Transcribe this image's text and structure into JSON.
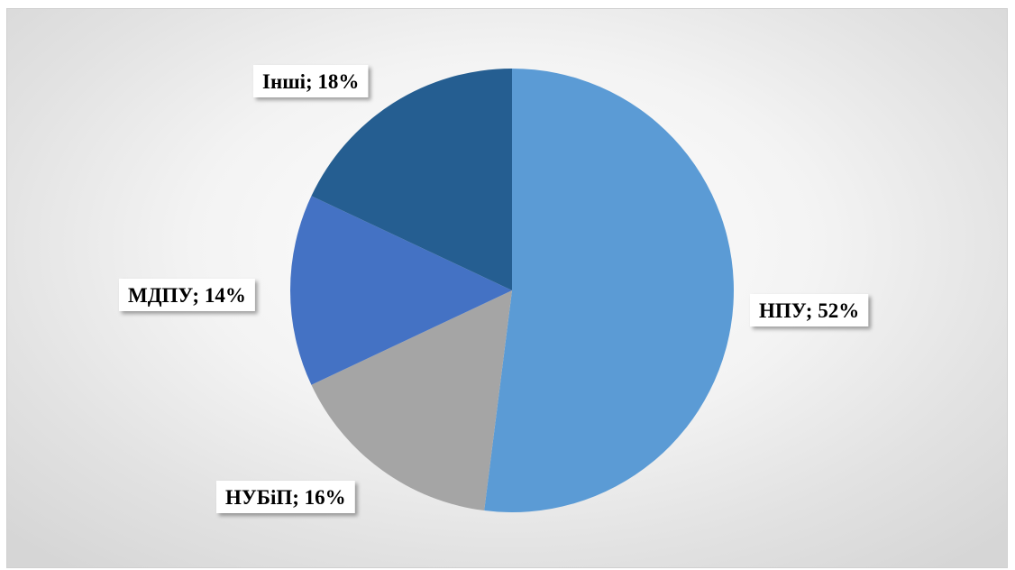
{
  "chart_data": {
    "type": "pie",
    "title": "",
    "slices": [
      {
        "label": "НПУ",
        "value": 52,
        "color": "#5b9bd5",
        "text": "НПУ; 52%"
      },
      {
        "label": "НУБіП",
        "value": 16,
        "color": "#a5a5a5",
        "text": "НУБіП; 16%"
      },
      {
        "label": "МДПУ",
        "value": 14,
        "color": "#4472c4",
        "text": "МДПУ; 14%"
      },
      {
        "label": "Інші",
        "value": 18,
        "color": "#255e91",
        "text": "Інші; 18%"
      }
    ],
    "legend": "none",
    "label_style": "category; percentage"
  }
}
